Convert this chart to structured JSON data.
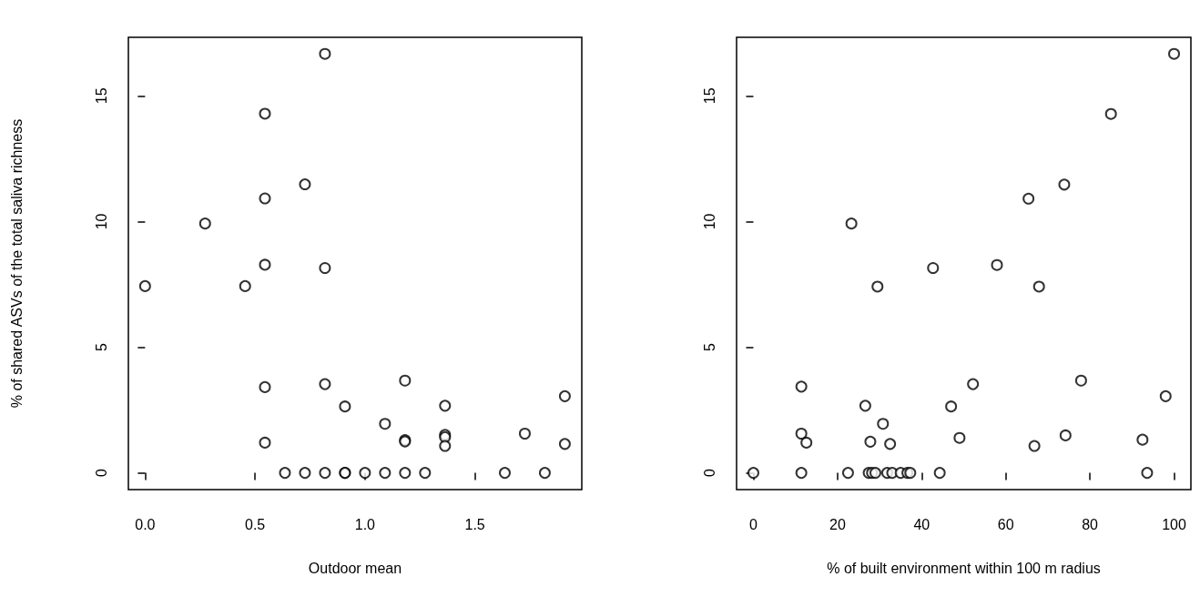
{
  "chart_data": [
    {
      "type": "scatter",
      "xlabel": "Outdoor mean",
      "ylabel": "% of shared ASVs of the total saliva richness",
      "marker": "circle",
      "grid": false,
      "xlim": [
        -0.076,
        1.986
      ],
      "xticks": [
        {
          "value": 0,
          "label": "0.0"
        },
        0.5,
        {
          "value": 1,
          "label": "1.0"
        },
        1.5
      ],
      "ylim": [
        -0.667,
        17.33
      ],
      "yticks": [
        0,
        5,
        10,
        15
      ],
      "series": [
        {
          "color": "#000000",
          "x": [
            0.818,
            0.545,
            0.727,
            0.545,
            0.273,
            0.545,
            0.818,
            0,
            0.455,
            0.545,
            0.545,
            0.818,
            0.909,
            1.182,
            1.091,
            1.182,
            1.182,
            1.364,
            1.364,
            1.364,
            1.364,
            1.727,
            1.909,
            1.909,
            0.636,
            0.727,
            0.818,
            0.909,
            0.909,
            1.0,
            1.091,
            1.182,
            1.273,
            1.636,
            1.818
          ],
          "values": [
            16.67,
            14.29,
            11.48,
            10.92,
            9.92,
            8.28,
            8.15,
            7.43,
            7.43,
            3.41,
            1.2,
            3.53,
            2.64,
            3.67,
            1.95,
            1.3,
            1.25,
            2.67,
            1.51,
            1.42,
            1.07,
            1.56,
            3.05,
            1.15,
            0,
            0,
            0,
            0,
            0,
            0,
            0,
            0,
            0,
            0,
            0
          ]
        }
      ]
    },
    {
      "type": "scatter",
      "xlabel": "% of built environment within 100 m radius",
      "marker": "circle",
      "grid": false,
      "xlim": [
        -4,
        104
      ],
      "xticks": [
        0,
        20,
        40,
        60,
        80,
        100
      ],
      "ylim": [
        -0.667,
        17.33
      ],
      "yticks": [
        0,
        5,
        10,
        15
      ],
      "series": [
        {
          "color": "#000000",
          "x": [
            100,
            85.0,
            73.9,
            65.4,
            23.3,
            57.9,
            42.7,
            29.5,
            67.9,
            11.4,
            11.4,
            12.6,
            26.6,
            30.8,
            27.8,
            32.5,
            47.0,
            52.2,
            49.0,
            66.8,
            74.2,
            77.9,
            92.5,
            98.0,
            0,
            11.4,
            22.5,
            27.4,
            28.2,
            29.0,
            31.8,
            33.0,
            35.0,
            36.6,
            37.3,
            44.3,
            93.6
          ],
          "values": [
            16.67,
            14.28,
            11.47,
            10.91,
            9.92,
            8.27,
            8.15,
            7.41,
            7.41,
            3.43,
            1.56,
            1.2,
            2.67,
            1.95,
            1.24,
            1.15,
            2.64,
            3.53,
            1.39,
            1.07,
            1.49,
            3.67,
            1.32,
            3.05,
            0,
            0,
            0,
            0,
            0,
            0,
            0,
            0,
            0,
            0,
            0,
            0,
            0
          ]
        }
      ]
    }
  ]
}
